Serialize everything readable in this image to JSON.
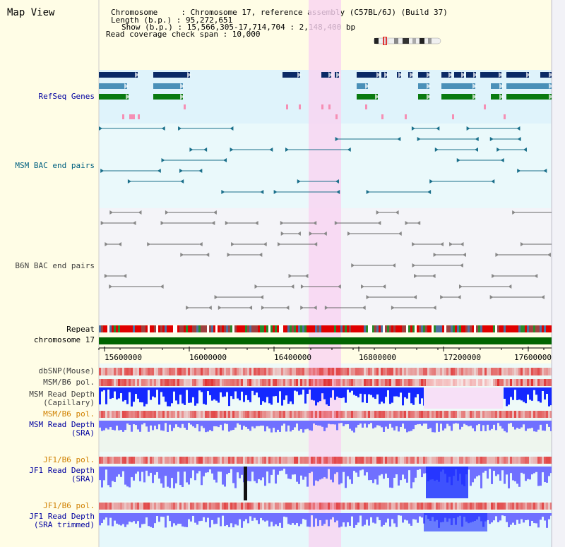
{
  "header": {
    "title": "Map View",
    "info_lines": [
      "Chromosome     : Chromosome 17, reference assembly (C57BL/6J) (Build 37)",
      "Length (b.p.) : 95,272,651",
      "Show (b.p.) : 15,566,305-17,714,704 : 2,148,400 bp",
      "Read coverage check span : 10,000"
    ]
  },
  "tracks": {
    "refseq": "RefSeq Genes",
    "msm_bac": "MSM BAC end pairs",
    "b6n_bac": "B6N BAC end pairs",
    "repeat": "Repeat",
    "chromosome": "chromosome 17",
    "dbsnp": "dbSNP(Mouse)",
    "msm_b6_pol_1": "MSM/B6 pol.",
    "msm_depth_cap_1": "MSM Read Depth",
    "msm_depth_cap_2": "(Capillary)",
    "msm_b6_pol_2": "MSM/B6 pol.",
    "msm_depth_sra_1": "MSM Read Depth",
    "msm_depth_sra_2": "(SRA)",
    "jf1_b6_pol_1": "JF1/B6 pol.",
    "jf1_depth_sra_1": "JF1 Read Depth",
    "jf1_depth_sra_2": "(SRA)",
    "jf1_b6_pol_2": "JF1/B6 pol.",
    "jf1_depth_trim_1": "JF1 Read Depth",
    "jf1_depth_trim_2": "(SRA trimmed)"
  },
  "axis": {
    "ticks": [
      "15600000",
      "16000000",
      "16400000",
      "16800000",
      "17200000",
      "17600000"
    ]
  },
  "colors": {
    "background": "#fffde6",
    "refseq_bg": "#dff3fb",
    "bac_bg": "#eaf9fb",
    "b6n_bg": "#f4f4f8",
    "highlight": "#f9d3f1",
    "gene_navy": "#0b2a66",
    "gene_steel": "#4a90b8",
    "gene_green": "#0a7a10",
    "chromosome_bar": "#006400",
    "depth_blue": "#1428ff",
    "depth_light": "#7070ff"
  }
}
